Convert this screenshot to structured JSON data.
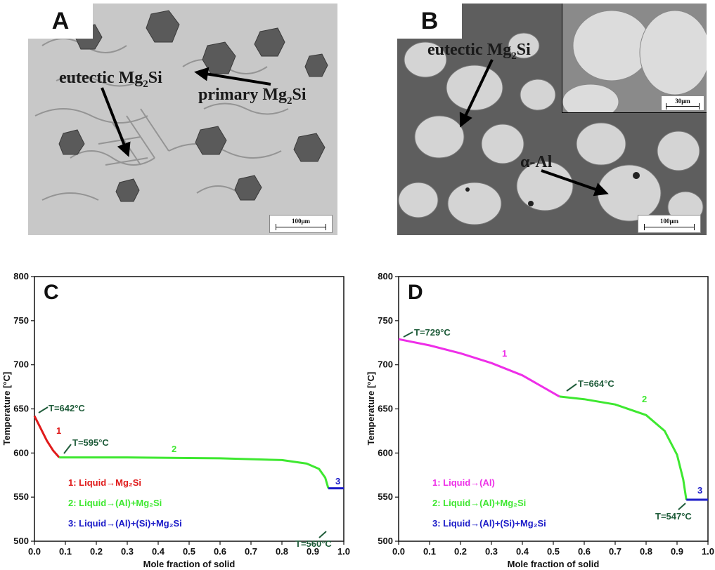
{
  "panels": {
    "A": {
      "letter": "A",
      "labels": {
        "eutectic": "eutectic Mg",
        "eutectic_sub": "2",
        "eutectic_tail": "Si",
        "primary": "primary Mg",
        "primary_sub": "2",
        "primary_tail": "Si"
      },
      "scale": "100μm"
    },
    "B": {
      "letter": "B",
      "labels": {
        "eutectic": "eutectic Mg",
        "eutectic_sub": "2",
        "eutectic_tail": "Si",
        "alpha": "α-Al"
      },
      "scale": "100μm",
      "inset_scale": "30μm"
    }
  },
  "colors": {
    "red": "#e01b1b",
    "green": "#3ee830",
    "blue": "#1a1ac8",
    "magenta": "#ee2ee8",
    "annot": "#1f5c3a"
  },
  "chart_data": [
    {
      "type": "line",
      "panel": "C",
      "xlabel": "Mole fraction of solid",
      "ylabel": "Temperature [°C]",
      "xlim": [
        0.0,
        1.0
      ],
      "ylim": [
        500,
        800
      ],
      "xticks": [
        "0.0",
        "0.1",
        "0.2",
        "0.3",
        "0.4",
        "0.5",
        "0.6",
        "0.7",
        "0.8",
        "0.9",
        "1.0"
      ],
      "yticks": [
        "500",
        "550",
        "600",
        "650",
        "700",
        "750",
        "800"
      ],
      "series": [
        {
          "name": "1: Liquid→Mg₂Si",
          "color": "#e01b1b",
          "label": "1",
          "x": [
            0.0,
            0.02,
            0.04,
            0.06,
            0.08
          ],
          "y": [
            642,
            628,
            614,
            603,
            595
          ]
        },
        {
          "name": "2: Liquid→(Al)+Mg₂Si",
          "color": "#3ee830",
          "label": "2",
          "x": [
            0.08,
            0.3,
            0.6,
            0.8,
            0.88,
            0.92,
            0.94,
            0.95
          ],
          "y": [
            595,
            595,
            594,
            592,
            588,
            582,
            572,
            560
          ]
        },
        {
          "name": "3: Liquid→(Al)+(Si)+Mg₂Si",
          "color": "#1a1ac8",
          "label": "3",
          "x": [
            0.95,
            1.0
          ],
          "y": [
            560,
            560
          ]
        }
      ],
      "annotations": [
        "T=642°C",
        "T=595°C",
        "T=560°C"
      ]
    },
    {
      "type": "line",
      "panel": "D",
      "xlabel": "Mole fraction of solid",
      "ylabel": "Temperature [°C]",
      "xlim": [
        0.0,
        1.0
      ],
      "ylim": [
        500,
        800
      ],
      "xticks": [
        "0.0",
        "0.1",
        "0.2",
        "0.3",
        "0.4",
        "0.5",
        "0.6",
        "0.7",
        "0.8",
        "0.9",
        "1.0"
      ],
      "yticks": [
        "500",
        "550",
        "600",
        "650",
        "700",
        "750",
        "800"
      ],
      "series": [
        {
          "name": "1: Liquid→(Al)",
          "color": "#ee2ee8",
          "label": "1",
          "x": [
            0.0,
            0.1,
            0.2,
            0.3,
            0.4,
            0.52
          ],
          "y": [
            729,
            722,
            713,
            702,
            688,
            664
          ]
        },
        {
          "name": "2: Liquid→(Al)+Mg₂Si",
          "color": "#3ee830",
          "label": "2",
          "x": [
            0.52,
            0.6,
            0.7,
            0.8,
            0.86,
            0.9,
            0.92,
            0.93
          ],
          "y": [
            664,
            661,
            655,
            643,
            625,
            598,
            570,
            547
          ]
        },
        {
          "name": "3: Liquid→(Al)+(Si)+Mg₂Si",
          "color": "#1a1ac8",
          "label": "3",
          "x": [
            0.93,
            1.0
          ],
          "y": [
            547,
            547
          ]
        }
      ],
      "annotations": [
        "T=729°C",
        "T=664°C",
        "T=547°C"
      ]
    }
  ]
}
